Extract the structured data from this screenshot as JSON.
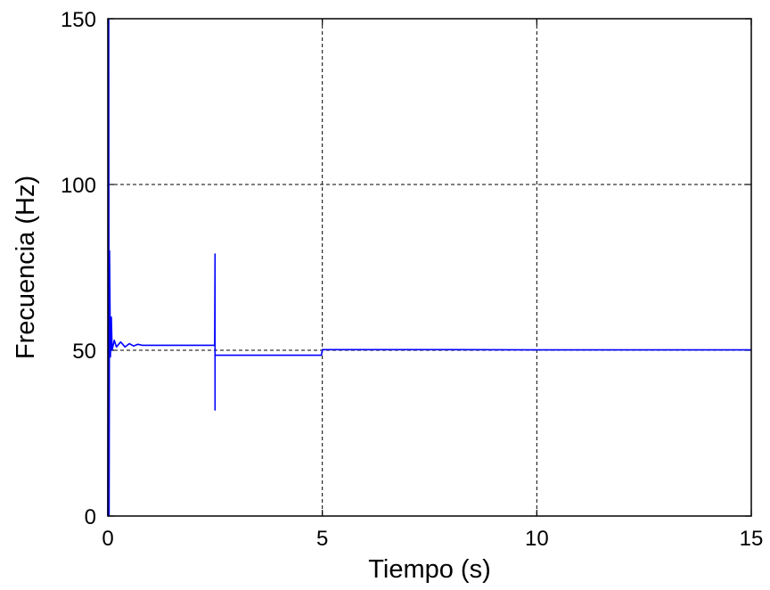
{
  "chart_data": {
    "type": "line",
    "title": "",
    "xlabel": "Tiempo (s)",
    "ylabel": "Frecuencia (Hz)",
    "xlim": [
      0,
      15
    ],
    "ylim": [
      0,
      150
    ],
    "xticks": [
      0,
      5,
      10,
      15
    ],
    "xtick_labels": [
      "0",
      "5",
      "10",
      "15"
    ],
    "yticks": [
      0,
      50,
      100,
      150
    ],
    "ytick_labels": [
      "0",
      "50",
      "100",
      "150"
    ],
    "grid": true,
    "legend": "none",
    "series": [
      {
        "color": "#0000ff",
        "x": [
          0,
          0.02,
          0.03,
          0.04,
          0.06,
          0.08,
          0.1,
          0.15,
          0.2,
          0.3,
          0.4,
          0.5,
          0.6,
          0.7,
          0.8,
          1.0,
          1.5,
          2.0,
          2.49,
          2.5,
          2.5,
          2.5,
          2.51,
          3.0,
          4.0,
          4.98,
          5.0,
          5.05,
          6.0,
          8.0,
          10.0,
          12.0,
          15.0
        ],
        "y": [
          0,
          150,
          0,
          80,
          48,
          60,
          50,
          53,
          51,
          52.5,
          51,
          52,
          51.3,
          51.8,
          51.5,
          51.5,
          51.5,
          51.5,
          51.5,
          79,
          32,
          48.5,
          48.5,
          48.5,
          48.5,
          48.5,
          50.2,
          50.2,
          50.2,
          50.2,
          50.1,
          50.1,
          50.1
        ]
      }
    ]
  }
}
